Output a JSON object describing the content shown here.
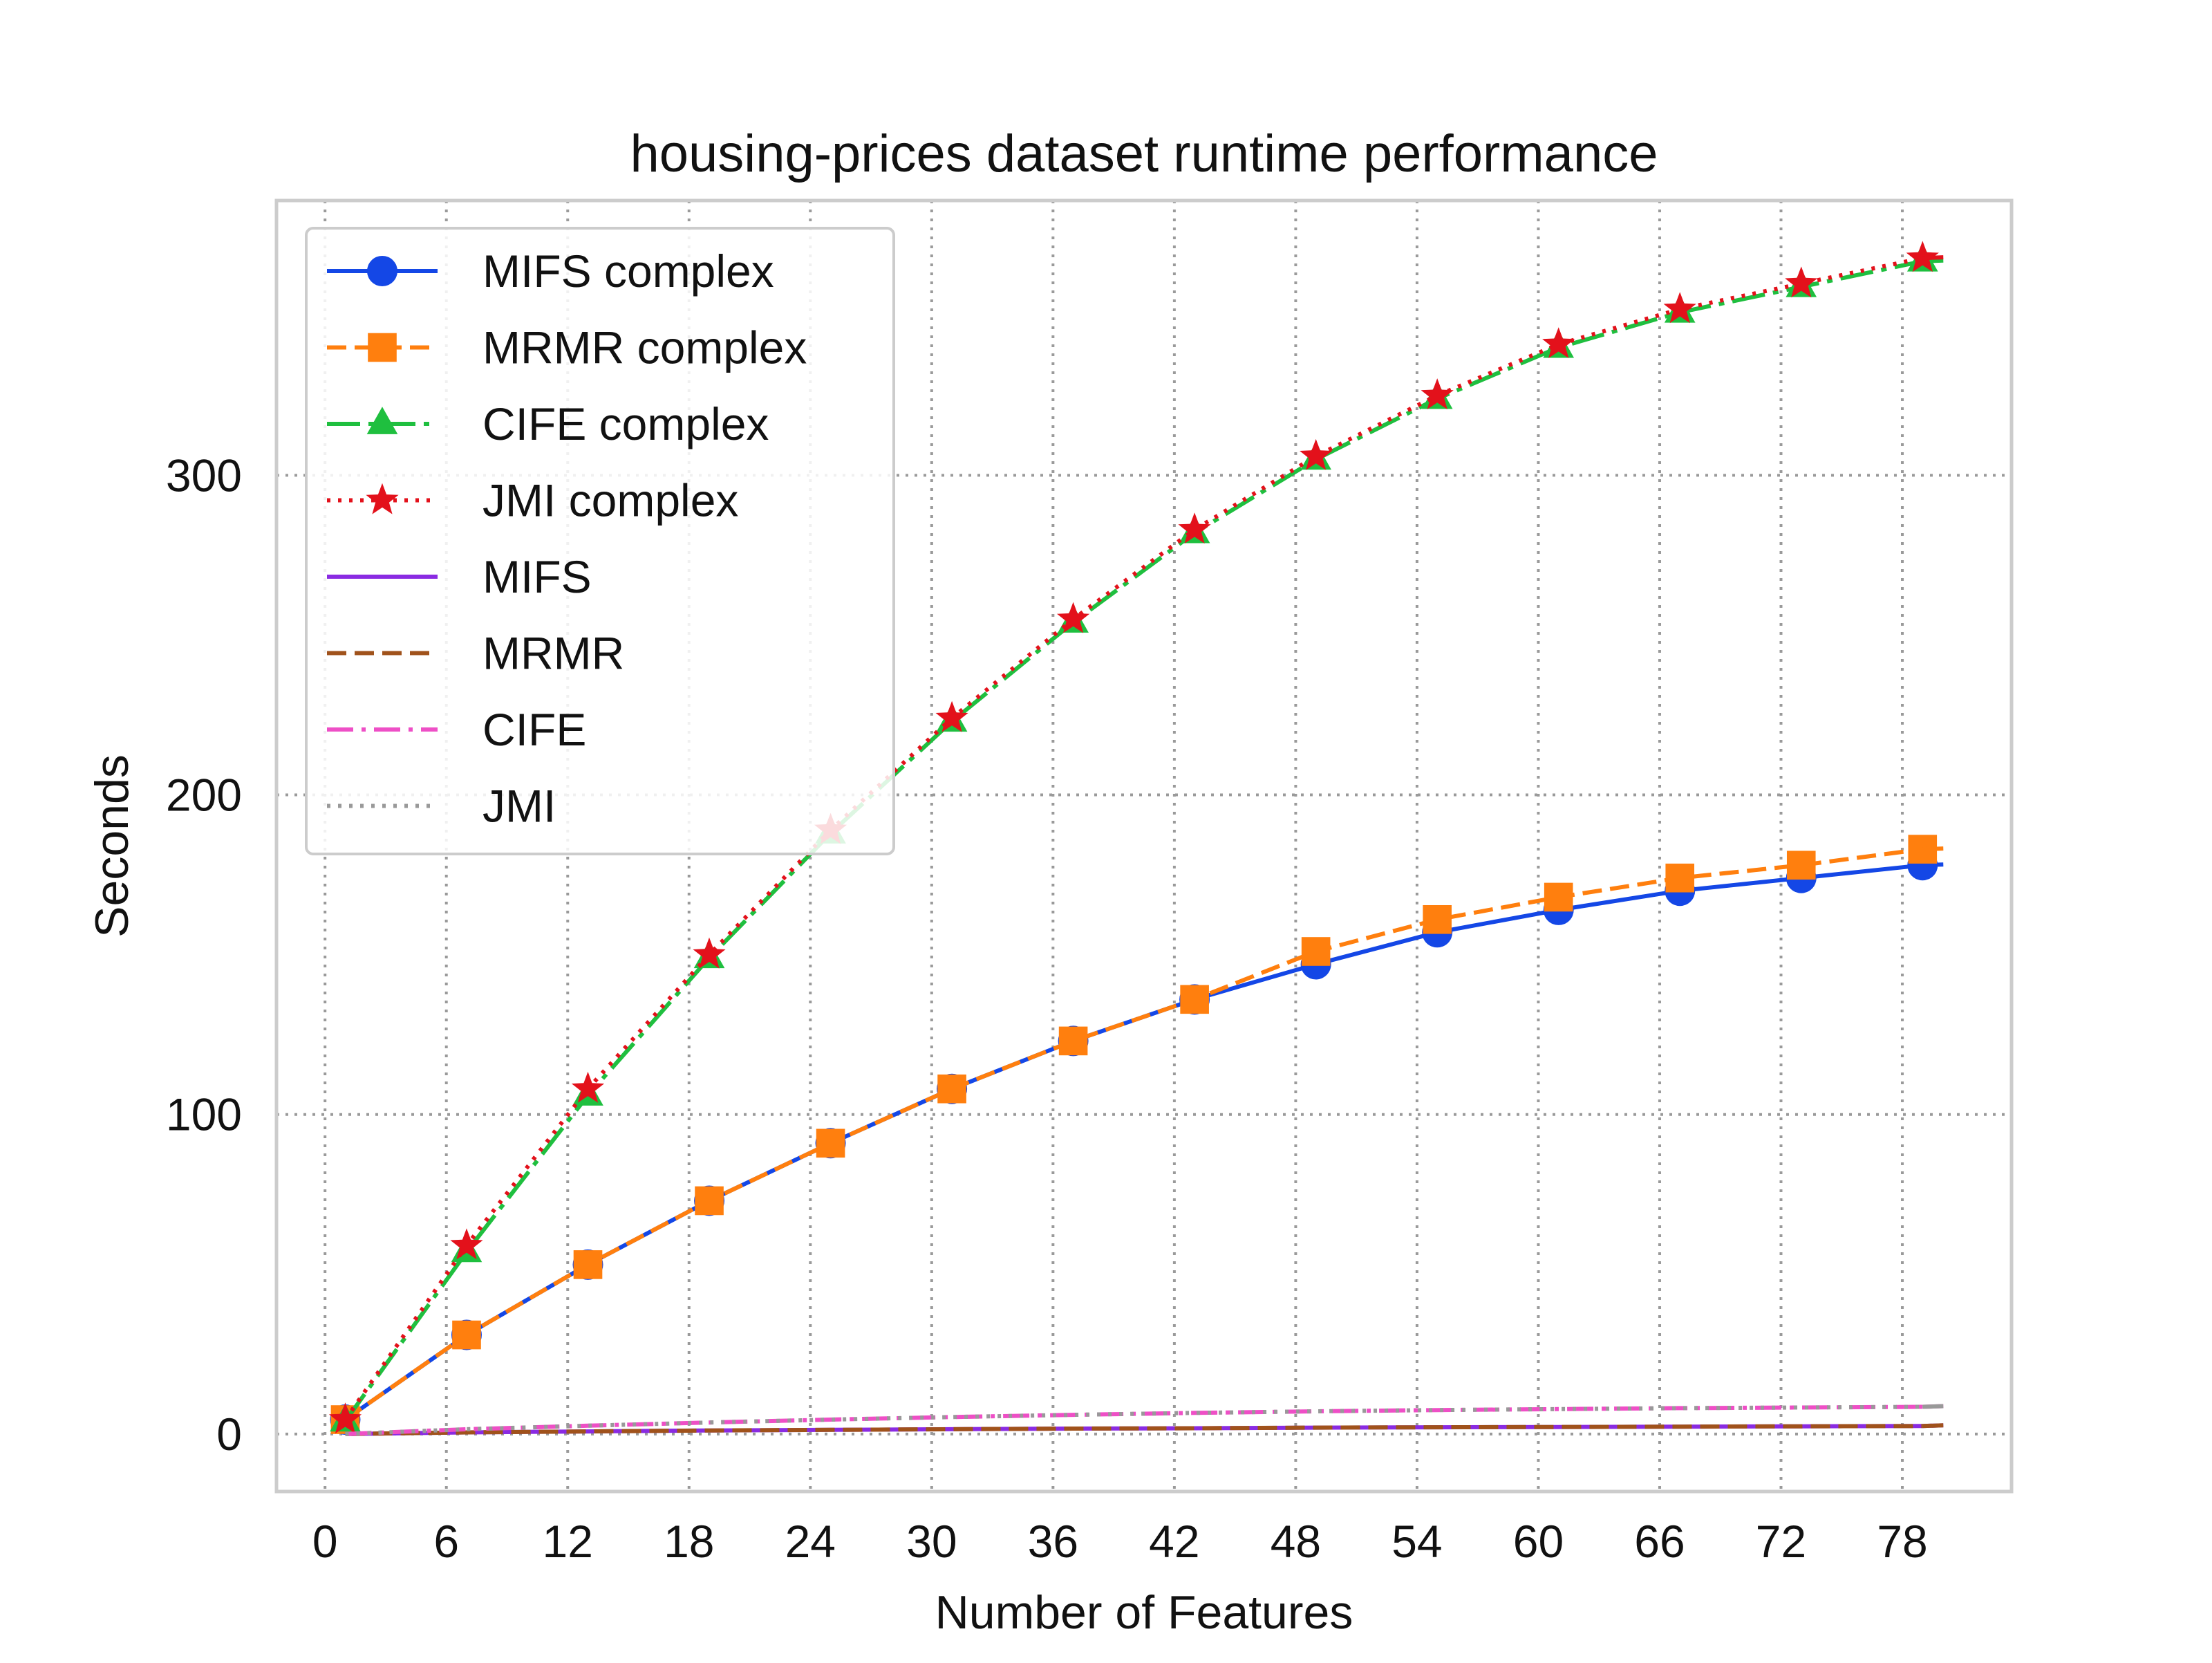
{
  "chart_data": {
    "type": "line",
    "title": "housing-prices dataset runtime performance",
    "xlabel": "Number of Features",
    "ylabel": "Seconds",
    "xlim": [
      -2.4,
      83.4
    ],
    "ylim": [
      -18,
      386
    ],
    "x_ticks": [
      0,
      6,
      12,
      18,
      24,
      30,
      36,
      42,
      48,
      54,
      60,
      66,
      72,
      78
    ],
    "y_ticks": [
      0,
      100,
      200,
      300
    ],
    "grid": true,
    "legend_position": "upper-left",
    "x": [
      1,
      7,
      13,
      19,
      25,
      31,
      37,
      43,
      49,
      55,
      61,
      67,
      73,
      79
    ],
    "series": [
      {
        "name": "MIFS complex",
        "color": "#1447e6",
        "dash": "solid",
        "marker": "circle",
        "values": [
          4.5,
          31,
          53,
          73,
          91,
          108,
          123,
          136,
          147,
          157,
          164,
          170,
          174,
          178
        ]
      },
      {
        "name": "MRMR complex",
        "color": "#ff7f0e",
        "dash": "dashed",
        "marker": "square",
        "values": [
          4.5,
          31,
          53,
          73,
          91,
          108,
          123,
          136,
          151,
          161,
          168,
          174,
          178,
          183
        ]
      },
      {
        "name": "CIFE complex",
        "color": "#1fbf3f",
        "dash": "dashdot-long",
        "marker": "triangle",
        "values": [
          4,
          57,
          106,
          149,
          188,
          223,
          254,
          282,
          305,
          324,
          340,
          351,
          359,
          367
        ]
      },
      {
        "name": "JMI complex",
        "color": "#e3111b",
        "dash": "dotted",
        "marker": "star",
        "values": [
          4.5,
          59,
          108,
          150,
          189,
          224,
          255,
          283,
          306,
          325,
          341,
          352,
          360,
          368
        ]
      },
      {
        "name": "MIFS",
        "color": "#8a2be2",
        "dash": "solid",
        "marker": "none",
        "values": [
          0,
          0.5,
          0.8,
          1.1,
          1.3,
          1.5,
          1.7,
          1.8,
          2.0,
          2.1,
          2.2,
          2.3,
          2.4,
          2.5
        ]
      },
      {
        "name": "MRMR",
        "color": "#a0521b",
        "dash": "dashed",
        "marker": "none",
        "values": [
          0,
          0.5,
          0.8,
          1.1,
          1.3,
          1.5,
          1.7,
          1.8,
          2.0,
          2.1,
          2.2,
          2.3,
          2.4,
          2.5
        ]
      },
      {
        "name": "CIFE",
        "color": "#ee4fc6",
        "dash": "dashdot",
        "marker": "none",
        "values": [
          0,
          1.5,
          2.6,
          3.6,
          4.5,
          5.3,
          6.0,
          6.6,
          7.1,
          7.5,
          7.8,
          8.1,
          8.3,
          8.5
        ]
      },
      {
        "name": "JMI",
        "color": "#999999",
        "dash": "dotted",
        "marker": "none",
        "values": [
          0,
          1.5,
          2.6,
          3.6,
          4.5,
          5.3,
          6.0,
          6.6,
          7.1,
          7.5,
          7.8,
          8.1,
          8.3,
          8.5
        ]
      }
    ]
  }
}
